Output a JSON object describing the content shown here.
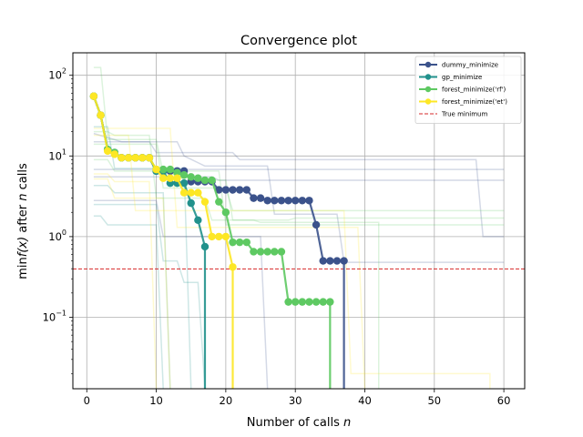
{
  "chart_data": {
    "type": "line",
    "title": "Convergence plot",
    "xlabel_main": "Number of calls ",
    "xlabel_italic": "n",
    "ylabel_pre": "min",
    "ylabel_fx": "f(x)",
    "ylabel_mid": " after ",
    "ylabel_n": "n",
    "ylabel_post": " calls",
    "xlim": [
      -2,
      63
    ],
    "ylim": [
      0.013,
      190
    ],
    "yscale": "log",
    "grid": true,
    "legend_position": "top-right",
    "x_ticks": [
      0,
      10,
      20,
      30,
      40,
      50,
      60
    ],
    "x_tick_labels": [
      "0",
      "10",
      "20",
      "30",
      "40",
      "50",
      "60"
    ],
    "y_ticks": [
      0.1,
      1,
      10,
      100
    ],
    "y_tick_labels": [
      "10",
      "10",
      "10",
      "10"
    ],
    "y_tick_exponents": [
      "−1",
      "0",
      "1",
      "2"
    ],
    "series": [
      {
        "name": "dummy_minimize",
        "color": "#3b528b",
        "x": [
          1,
          2,
          3,
          4,
          5,
          6,
          7,
          8,
          9,
          10,
          11,
          12,
          13,
          14,
          15,
          16,
          17,
          18,
          19,
          20,
          21,
          22,
          23,
          24,
          25,
          26,
          27,
          28,
          29,
          30,
          31,
          32,
          33,
          34,
          35,
          36,
          37
        ],
        "y": [
          55,
          32,
          12,
          11,
          9.5,
          9.5,
          9.5,
          9.5,
          9.5,
          6.5,
          6.5,
          6.5,
          6.5,
          6.5,
          4.8,
          4.8,
          4.8,
          4.8,
          3.8,
          3.8,
          3.8,
          3.8,
          3.8,
          3.0,
          3.0,
          2.8,
          2.8,
          2.8,
          2.8,
          2.8,
          2.8,
          2.8,
          1.4,
          0.5,
          0.5,
          0.5,
          0.5
        ],
        "drop_to_bottom": true
      },
      {
        "name": "gp_minimize",
        "color": "#21918c",
        "x": [
          1,
          2,
          3,
          4,
          5,
          6,
          7,
          8,
          9,
          10,
          11,
          12,
          13,
          14,
          15,
          16,
          17
        ],
        "y": [
          55,
          32,
          12,
          11,
          9.5,
          9.5,
          9.5,
          9.5,
          9.5,
          6.5,
          6.5,
          4.6,
          4.6,
          4.6,
          2.6,
          1.6,
          0.75
        ],
        "drop_to_bottom": true
      },
      {
        "name": "forest_minimize('rf')",
        "color": "#5ec962",
        "x": [
          1,
          2,
          3,
          4,
          5,
          6,
          7,
          8,
          9,
          10,
          11,
          12,
          13,
          14,
          15,
          16,
          17,
          18,
          19,
          20,
          21,
          22,
          23,
          24,
          25,
          26,
          27,
          28,
          29,
          30,
          31,
          32,
          33,
          34,
          35
        ],
        "y": [
          55,
          32,
          12,
          11,
          9.5,
          9.5,
          9.5,
          9.5,
          9.5,
          6.8,
          6.8,
          6.8,
          6.2,
          5.8,
          5.5,
          5.3,
          5.0,
          5.0,
          2.7,
          2.0,
          0.85,
          0.85,
          0.85,
          0.65,
          0.65,
          0.65,
          0.65,
          0.65,
          0.155,
          0.155,
          0.155,
          0.155,
          0.155,
          0.155,
          0.155
        ],
        "drop_to_bottom": true
      },
      {
        "name": "forest_minimize('et')",
        "color": "#fde725",
        "x": [
          1,
          2,
          3,
          4,
          5,
          6,
          7,
          8,
          9,
          10,
          11,
          12,
          13,
          14,
          15,
          16,
          17,
          18,
          19,
          20,
          21
        ],
        "y": [
          55,
          32,
          11.5,
          10.5,
          9.5,
          9.5,
          9.5,
          9.5,
          9.5,
          6.8,
          5.3,
          5.3,
          5.3,
          3.5,
          3.5,
          3.5,
          2.7,
          1.0,
          1.0,
          1.0,
          0.42
        ],
        "drop_to_bottom": true
      },
      {
        "name": "True minimum",
        "color": "#d62728",
        "y_constant": 0.398
      }
    ],
    "background_runs": [
      {
        "color": "#3b528b",
        "steps": [
          [
            1,
            6.8
          ],
          [
            9,
            6.8
          ],
          [
            14,
            6.8
          ],
          [
            60,
            6.8
          ]
        ]
      },
      {
        "color": "#3b528b",
        "steps": [
          [
            1,
            5.5
          ],
          [
            18,
            5.5
          ],
          [
            19,
            5.0
          ],
          [
            60,
            5.0
          ]
        ]
      },
      {
        "color": "#3b528b",
        "steps": [
          [
            1,
            19
          ],
          [
            5,
            15
          ],
          [
            13,
            15
          ],
          [
            14,
            10
          ],
          [
            17,
            7.5
          ],
          [
            26,
            7.5
          ],
          [
            27,
            1.9
          ],
          [
            36,
            1.9
          ],
          [
            37,
            0.48
          ],
          [
            60,
            0.48
          ]
        ]
      },
      {
        "color": "#3b528b",
        "steps": [
          [
            1,
            15
          ],
          [
            9,
            15
          ],
          [
            10,
            11
          ],
          [
            21,
            11
          ],
          [
            22,
            9
          ],
          [
            56,
            9
          ],
          [
            57,
            1.0
          ],
          [
            60,
            1.0
          ]
        ]
      },
      {
        "color": "#3b528b",
        "steps": [
          [
            1,
            2.8
          ],
          [
            10,
            2.8
          ],
          [
            11,
            1.0
          ],
          [
            25,
            1.0
          ],
          [
            26,
            0.013
          ]
        ]
      },
      {
        "color": "#21918c",
        "steps": [
          [
            1,
            4.3
          ],
          [
            3,
            4.3
          ],
          [
            4,
            3.5
          ],
          [
            11,
            3.5
          ],
          [
            12,
            0.013
          ]
        ]
      },
      {
        "color": "#21918c",
        "steps": [
          [
            1,
            2.5
          ],
          [
            10,
            2.5
          ],
          [
            11,
            0.5
          ],
          [
            13,
            0.5
          ],
          [
            14,
            0.27
          ],
          [
            16,
            0.27
          ],
          [
            17,
            0.013
          ]
        ]
      },
      {
        "color": "#21918c",
        "steps": [
          [
            1,
            23
          ],
          [
            3,
            23
          ],
          [
            4,
            7
          ],
          [
            14,
            7
          ],
          [
            15,
            0.013
          ]
        ]
      },
      {
        "color": "#21918c",
        "steps": [
          [
            1,
            1.8
          ],
          [
            2,
            1.8
          ],
          [
            3,
            1.4
          ],
          [
            10,
            1.4
          ],
          [
            11,
            0.013
          ]
        ]
      },
      {
        "color": "#5ec962",
        "steps": [
          [
            1,
            125
          ],
          [
            2,
            125
          ],
          [
            3,
            16
          ],
          [
            10,
            16
          ],
          [
            11,
            6
          ],
          [
            13,
            6
          ],
          [
            14,
            5
          ],
          [
            20,
            5
          ],
          [
            21,
            1.6
          ],
          [
            24,
            1.6
          ],
          [
            25,
            1.5
          ],
          [
            42,
            1.5
          ],
          [
            42,
            0.013
          ]
        ]
      },
      {
        "color": "#5ec962",
        "steps": [
          [
            1,
            20
          ],
          [
            3,
            20
          ],
          [
            4,
            18
          ],
          [
            9,
            18
          ],
          [
            10,
            3.0
          ],
          [
            17,
            3.0
          ],
          [
            18,
            1.6
          ],
          [
            29,
            1.6
          ],
          [
            30,
            1.7
          ],
          [
            60,
            1.7
          ]
        ]
      },
      {
        "color": "#5ec962",
        "steps": [
          [
            1,
            14
          ],
          [
            10,
            14
          ],
          [
            11,
            4.0
          ],
          [
            20,
            4.0
          ],
          [
            21,
            2.1
          ],
          [
            60,
            2.1
          ]
        ]
      },
      {
        "color": "#5ec962",
        "steps": [
          [
            1,
            9
          ],
          [
            3,
            9
          ],
          [
            4,
            6.5
          ],
          [
            19,
            6.5
          ],
          [
            20,
            1.4
          ],
          [
            60,
            1.4
          ]
        ]
      },
      {
        "color": "#fde725",
        "steps": [
          [
            1,
            6.0
          ],
          [
            3,
            6.0
          ],
          [
            4,
            4.8
          ],
          [
            9,
            4.8
          ],
          [
            10,
            0.013
          ]
        ]
      },
      {
        "color": "#fde725",
        "steps": [
          [
            1,
            22
          ],
          [
            12,
            22
          ],
          [
            13,
            1.3
          ],
          [
            39,
            1.3
          ],
          [
            40,
            0.013
          ]
        ]
      },
      {
        "color": "#fde725",
        "steps": [
          [
            1,
            5.2
          ],
          [
            3,
            5.2
          ],
          [
            4,
            3.0
          ],
          [
            11,
            3.0
          ],
          [
            12,
            0.013
          ]
        ]
      },
      {
        "color": "#fde725",
        "steps": [
          [
            1,
            18
          ],
          [
            6,
            18
          ],
          [
            7,
            2.1
          ],
          [
            37,
            2.1
          ],
          [
            38,
            0.02
          ],
          [
            58,
            0.02
          ],
          [
            58,
            0.013
          ]
        ]
      }
    ]
  }
}
